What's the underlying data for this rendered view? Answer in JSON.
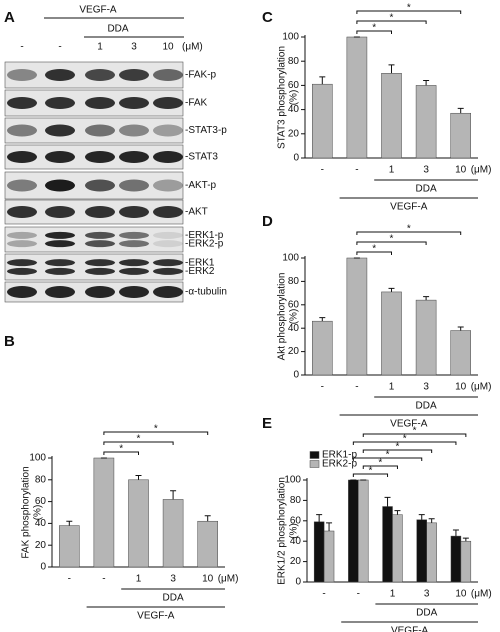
{
  "blot": {
    "panel": "A",
    "treatment": "VEGF-A",
    "inhibitor": "DDA",
    "lanes": [
      "-",
      "-",
      "1",
      "3",
      "10"
    ],
    "unit": "(μM)",
    "rows": [
      [
        "-FAK-p"
      ],
      [
        "-FAK"
      ],
      [
        "-STAT3-p"
      ],
      [
        "-STAT3"
      ],
      [
        "-AKT-p"
      ],
      [
        "-AKT"
      ],
      [
        "-ERK1-p",
        "-ERK2-p"
      ],
      [
        "-ERK1",
        "-ERK2"
      ],
      [
        "-α-tubulin"
      ]
    ]
  },
  "chart_data": [
    {
      "type": "bar",
      "panel": "C",
      "ylabel": [
        "STAT3 phosphorylation",
        "(%)"
      ],
      "categories": [
        "-",
        "-",
        "1",
        "3",
        "10"
      ],
      "unit": "(μM)",
      "group_labels": [
        "DDA",
        "VEGF-A"
      ],
      "values": [
        61,
        100,
        70,
        60,
        37
      ],
      "errors": [
        6,
        0,
        7,
        4,
        4
      ],
      "color": "#b5b5b5",
      "ylim": [
        0,
        100
      ],
      "yticks": [
        0,
        20,
        40,
        60,
        80,
        100
      ],
      "annotations": [
        "*",
        "*",
        "*"
      ]
    },
    {
      "type": "bar",
      "panel": "D",
      "ylabel": [
        "Akt phosphorylation",
        "(%)"
      ],
      "categories": [
        "-",
        "-",
        "1",
        "3",
        "10"
      ],
      "unit": "(μM)",
      "group_labels": [
        "DDA",
        "VEGF-A"
      ],
      "values": [
        46,
        100,
        71,
        64,
        38
      ],
      "errors": [
        3,
        0,
        3,
        3,
        3
      ],
      "color": "#b5b5b5",
      "ylim": [
        0,
        100
      ],
      "yticks": [
        0,
        20,
        40,
        60,
        80,
        100
      ],
      "annotations": [
        "*",
        "*",
        "*"
      ]
    },
    {
      "type": "bar",
      "panel": "B",
      "ylabel": [
        "FAK phosphorylation",
        "(%)"
      ],
      "categories": [
        "-",
        "-",
        "1",
        "3",
        "10"
      ],
      "unit": "(μM)",
      "group_labels": [
        "DDA",
        "VEGF-A"
      ],
      "values": [
        38,
        100,
        80,
        62,
        42
      ],
      "errors": [
        4,
        0,
        4,
        8,
        5
      ],
      "color": "#b5b5b5",
      "ylim": [
        0,
        100
      ],
      "yticks": [
        0,
        20,
        40,
        60,
        80,
        100
      ],
      "annotations": [
        "*",
        "*",
        "*"
      ]
    },
    {
      "type": "bar",
      "panel": "E",
      "ylabel": [
        "ERK1/2 phosphorylation",
        "(%)"
      ],
      "categories": [
        "-",
        "-",
        "1",
        "3",
        "10"
      ],
      "unit": "(μM)",
      "group_labels": [
        "DDA",
        "VEGF-A"
      ],
      "series": [
        {
          "name": "ERK1-p",
          "color": "#111111",
          "values": [
            59,
            100,
            74,
            61,
            45
          ],
          "errors": [
            7,
            0,
            9,
            5,
            6
          ]
        },
        {
          "name": "ERK2-p",
          "color": "#b5b5b5",
          "values": [
            50,
            100,
            66,
            58,
            40
          ],
          "errors": [
            8,
            0,
            4,
            4,
            3
          ]
        }
      ],
      "ylim": [
        0,
        100
      ],
      "yticks": [
        0,
        20,
        40,
        60,
        80,
        100
      ],
      "yticks_format": "percent",
      "annotations": [
        "*",
        "*",
        "*",
        "*",
        "*",
        "*"
      ]
    }
  ]
}
